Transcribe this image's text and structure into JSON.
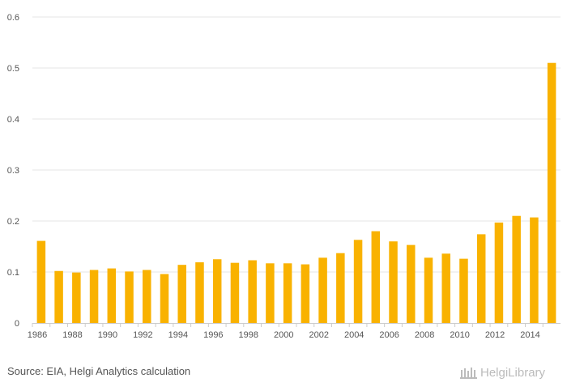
{
  "chart_data": {
    "type": "bar",
    "title": "",
    "xlabel": "",
    "ylabel": "",
    "ylim": [
      0,
      0.6
    ],
    "yticks": [
      0,
      0.1,
      0.2,
      0.3,
      0.4,
      0.5,
      0.6
    ],
    "ytick_labels": [
      "0",
      "0.1",
      "0.2",
      "0.3",
      "0.4",
      "0.5",
      "0.6"
    ],
    "xtick_labels": [
      "1986",
      "1988",
      "1990",
      "1992",
      "1994",
      "1996",
      "1998",
      "2000",
      "2002",
      "2004",
      "2006",
      "2008",
      "2010",
      "2012",
      "2014"
    ],
    "categories": [
      "1986",
      "1987",
      "1988",
      "1989",
      "1990",
      "1991",
      "1992",
      "1993",
      "1994",
      "1995",
      "1996",
      "1997",
      "1998",
      "1999",
      "2000",
      "2001",
      "2002",
      "2003",
      "2004",
      "2005",
      "2006",
      "2007",
      "2008",
      "2009",
      "2010",
      "2011",
      "2012",
      "2013",
      "2014",
      "2015"
    ],
    "values": [
      0.161,
      0.102,
      0.099,
      0.104,
      0.107,
      0.101,
      0.104,
      0.096,
      0.114,
      0.119,
      0.125,
      0.118,
      0.123,
      0.117,
      0.117,
      0.115,
      0.128,
      0.137,
      0.163,
      0.18,
      0.16,
      0.153,
      0.128,
      0.136,
      0.126,
      0.174,
      0.197,
      0.21,
      0.207,
      0.51
    ],
    "bar_color": "#f9b200",
    "grid": true
  },
  "footer": {
    "source": "Source: EIA, Helgi Analytics calculation",
    "logo_text": "HelgiLibrary"
  }
}
